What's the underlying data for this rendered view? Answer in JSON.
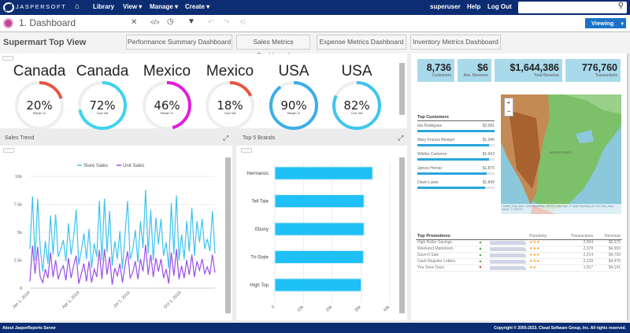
{
  "nav": {
    "logo": "JASPERSOFT",
    "home_icon": "home-icon",
    "items": [
      "Library",
      "View ▾",
      "Manage ▾",
      "Create ▾"
    ],
    "user": "superuser",
    "help": "Help",
    "logout": "Log Out",
    "search_placeholder": ""
  },
  "toolbar": {
    "title": "1. Dashboard",
    "mode": "Viewing"
  },
  "titlebar": {
    "title": "Supermart Top View",
    "buttons": [
      "Performance Summary Dashboard",
      "Sales Metrics Dashboard",
      "Expense Metrics Dashboard",
      "Inventory Metrics Dashboard"
    ]
  },
  "gauges": [
    {
      "country": "Canada",
      "value": 20,
      "label": "20%",
      "sub": "Margin %",
      "color": "#e8543f"
    },
    {
      "country": "Canada",
      "value": 72,
      "label": "72%",
      "sub": "Cust Sat",
      "color": "#3fd3ee"
    },
    {
      "country": "Mexico",
      "value": 46,
      "label": "46%",
      "sub": "Margin %",
      "color": "#e020d8"
    },
    {
      "country": "Mexico",
      "value": 18,
      "label": "18%",
      "sub": "Cust Sat",
      "color": "#e8543f"
    },
    {
      "country": "USA",
      "value": 90,
      "label": "90%",
      "sub": "Margin %",
      "color": "#3aaee8"
    },
    {
      "country": "USA",
      "value": 82,
      "label": "82%",
      "sub": "Cust Sat",
      "color": "#3fc5ee"
    }
  ],
  "sales_trend": {
    "title": "Sales Trend"
  },
  "top_brands": {
    "title": "Top 5 Brands"
  },
  "chart_data": [
    {
      "type": "line",
      "legend": "top",
      "series": [
        {
          "name": "Store Sales",
          "color": "#3cc3ee",
          "values": [
            3500,
            8200,
            2500,
            8000,
            3600,
            1500,
            4200,
            2200,
            6500,
            3000,
            6600,
            2800,
            3500,
            4300,
            2400,
            5800,
            3000,
            4600,
            7000,
            2100,
            3400,
            4900,
            2600,
            5300,
            1800,
            4000,
            2800,
            7800,
            2500,
            8000,
            3200,
            6900,
            2000,
            4200,
            2600,
            5100,
            1700,
            4800,
            7800,
            2600,
            3400,
            5200,
            2300,
            6000,
            3600,
            8800,
            3100,
            7000,
            2500,
            6300,
            3900,
            6200,
            2900,
            4100,
            1800,
            7600,
            3000,
            8300,
            2500,
            4800,
            2600,
            6000,
            3300,
            7200,
            2900,
            6000,
            4100,
            6200,
            3500,
            4400,
            3300,
            6900,
            3100
          ]
        },
        {
          "name": "Unit Sales",
          "color": "#9b4fe6",
          "values": [
            600,
            3800,
            1300,
            3700,
            1000,
            500,
            1700,
            900,
            3200,
            1000,
            2500,
            800,
            1600,
            2000,
            700,
            2700,
            900,
            2000,
            2900,
            400,
            1300,
            2200,
            600,
            2400,
            500,
            1700,
            1000,
            3400,
            800,
            3500,
            1200,
            2800,
            300,
            1800,
            1100,
            2200,
            500,
            2000,
            3300,
            900,
            1400,
            2400,
            800,
            2600,
            1500,
            3900,
            1200,
            3000,
            1000,
            2700,
            1500,
            2600,
            900,
            1700,
            400,
            3200,
            1100,
            3500,
            800,
            2000,
            900,
            2500,
            1200,
            3000,
            1000,
            2400,
            1600,
            2600,
            1300,
            1900,
            1200,
            3000,
            1400
          ]
        }
      ],
      "x_ticks": [
        "Jan 1, 2019",
        "Apr 1, 2019",
        "Jul 1, 2019",
        "Oct 1, 2019"
      ],
      "y_ticks": [
        "0",
        "2.5k",
        "5k",
        "7.5k",
        "10k"
      ],
      "ylim": [
        0,
        10000
      ],
      "grid": true
    },
    {
      "type": "bar",
      "orientation": "horizontal",
      "color": "#1ec0f5",
      "categories": [
        "Hermanos",
        "Tell Tale",
        "Ebony",
        "Tri-State",
        "High Top"
      ],
      "values": [
        34000,
        31000,
        31000,
        30800,
        30000
      ],
      "x_ticks": [
        "0",
        "10k",
        "20k",
        "30k",
        "40k"
      ],
      "xlim": [
        0,
        40000
      ],
      "grid": true
    }
  ],
  "kpis": [
    {
      "value": "8,736",
      "label": "Customers"
    },
    {
      "value": "$6",
      "label": "Ave. Revenue"
    },
    {
      "value": "$1,644,386",
      "label": "Total Revenue"
    },
    {
      "value": "776,760",
      "label": "Transactions"
    }
  ],
  "top_customers": {
    "title": "Top Customers",
    "items": [
      {
        "name": "Ida Rodriguez",
        "value": "$2,081",
        "pct": 100
      },
      {
        "name": "Mary Francis Beniger",
        "value": "$1,946",
        "pct": 93
      },
      {
        "name": "Wildon Cameron",
        "value": "$1,943",
        "pct": 93
      },
      {
        "name": "James Horvat",
        "value": "$1,875",
        "pct": 90
      },
      {
        "name": "Dawn Laner",
        "value": "$1,849",
        "pct": 88
      }
    ]
  },
  "map": {
    "zoom_in": "+",
    "zoom_out": "−",
    "country_label": "UNITED STATES",
    "attribution": "Leaflet | Map data: OpenStreetMap, SRTM | Map style: © OpenTopoMap (CC-BY-SA) | Map labels: © CARTO"
  },
  "promotions": {
    "headers": [
      "Top Promotions",
      "",
      "",
      "Popularity",
      "Transactions",
      "Revenue"
    ],
    "rows": [
      {
        "name": "High Roller Savings",
        "trend": "up",
        "stars": "★★★",
        "transactions": "2,654",
        "revenue": "$5,375"
      },
      {
        "name": "Weekend Markdown",
        "trend": "up",
        "stars": "★★★",
        "transactions": "2,378",
        "revenue": "$4,993"
      },
      {
        "name": "Save-It Sale",
        "trend": "up",
        "stars": "★★★",
        "transactions": "2,214",
        "revenue": "$4,730"
      },
      {
        "name": "Cash Register Lottery",
        "trend": "up",
        "stars": "★★★",
        "transactions": "2,218",
        "revenue": "$4,475"
      },
      {
        "name": "You Save Days",
        "trend": "down",
        "stars": "★★",
        "transactions": "1,917",
        "revenue": "$4,141"
      }
    ]
  },
  "footer": {
    "left": "About JasperReports Server",
    "right": "Copyright © 2005-2023. Cloud Software Group, Inc. All rights reserved."
  }
}
